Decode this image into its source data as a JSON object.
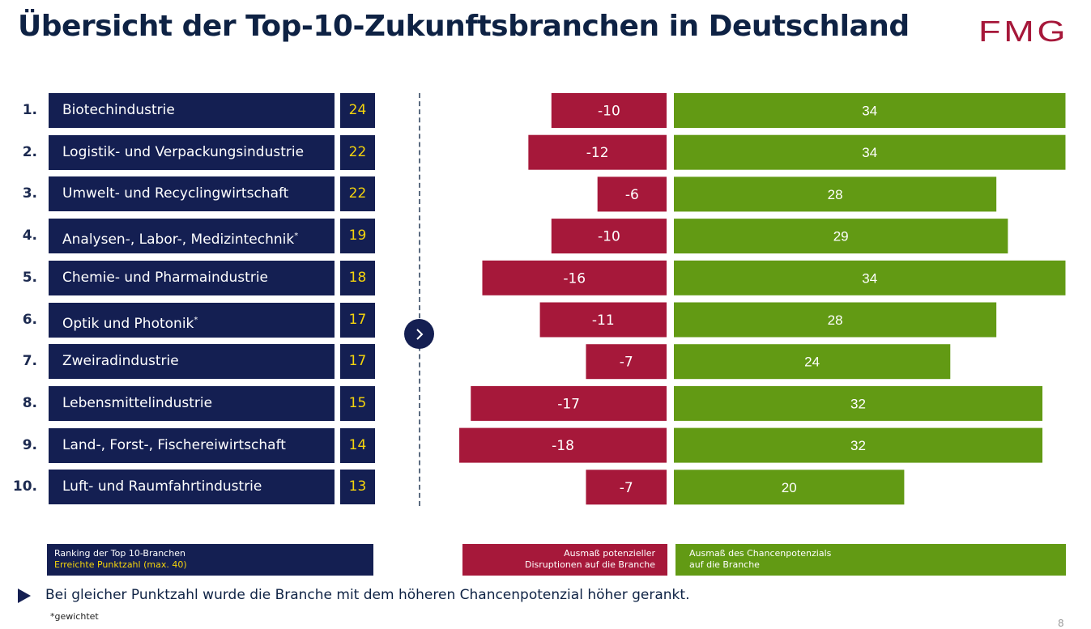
{
  "header": {
    "title": "Übersicht der Top-10-Zukunftsbranchen in Deutschland",
    "logo": "FMG"
  },
  "colors": {
    "navy": "#141f52",
    "score_yellow": "#f5d40c",
    "disruption_red": "#a6183a",
    "opportunity_green": "#629a14",
    "title_navy": "#0e2244"
  },
  "ranking": [
    {
      "rank": "1.",
      "name": "Biotechindustrie",
      "weighted": false,
      "score": "24"
    },
    {
      "rank": "2.",
      "name": "Logistik- und Verpackungsindustrie",
      "weighted": false,
      "score": "22"
    },
    {
      "rank": "3.",
      "name": "Umwelt- und Recyclingwirtschaft",
      "weighted": false,
      "score": "22"
    },
    {
      "rank": "4.",
      "name": "Analysen-, Labor-, Medizintechnik",
      "weighted": true,
      "score": "19"
    },
    {
      "rank": "5.",
      "name": "Chemie- und Pharmaindustrie",
      "weighted": false,
      "score": "18"
    },
    {
      "rank": "6.",
      "name": "Optik und Photonik",
      "weighted": true,
      "score": "17"
    },
    {
      "rank": "7.",
      "name": "Zweiradindustrie",
      "weighted": false,
      "score": "17"
    },
    {
      "rank": "8.",
      "name": "Lebensmittelindustrie",
      "weighted": false,
      "score": "15"
    },
    {
      "rank": "9.",
      "name": "Land-, Forst-, Fischereiwirtschaft",
      "weighted": false,
      "score": "14"
    },
    {
      "rank": "10.",
      "name": "Luft- und Raumfahrtindustrie",
      "weighted": false,
      "score": "13"
    }
  ],
  "weighted_marker": "*",
  "chart_data": {
    "type": "bar",
    "orientation": "horizontal-diverging",
    "title": "",
    "categories": [
      "Biotechindustrie",
      "Logistik- und Verpackungsindustrie",
      "Umwelt- und Recyclingwirtschaft",
      "Analysen-, Labor-, Medizintechnik",
      "Chemie- und Pharmaindustrie",
      "Optik und Photonik",
      "Zweiradindustrie",
      "Lebensmittelindustrie",
      "Land-, Forst-, Fischereiwirtschaft",
      "Luft- und Raumfahrtindustrie"
    ],
    "series": [
      {
        "name": "Ausmaß potenzieller Disruptionen auf die Branche",
        "color": "#a6183a",
        "values": [
          -10,
          -12,
          -6,
          -10,
          -16,
          -11,
          -7,
          -17,
          -18,
          -7
        ]
      },
      {
        "name": "Ausmaß des Chancenpotenzials auf die Branche",
        "color": "#629a14",
        "values": [
          34,
          34,
          28,
          29,
          34,
          28,
          24,
          32,
          32,
          20
        ]
      }
    ],
    "xlim": [
      -18,
      34
    ],
    "grid": false,
    "legend": "bottom",
    "data_labels": true
  },
  "legend": {
    "ranking_line1": "Ranking der Top 10-Branchen",
    "ranking_line2": "Erreichte Punktzahl (max. 40)",
    "disruption_line1": "Ausmaß potenzieller",
    "disruption_line2": "Disruptionen auf die Branche",
    "opportunity_line1": "Ausmaß des Chancenpotenzials",
    "opportunity_line2": "auf die Branche"
  },
  "footer": {
    "note": "Bei gleicher Punktzahl wurde die Branche mit dem höheren Chancenpotenzial höher gerankt.",
    "footnote": "*gewichtet",
    "page_number": "8"
  }
}
